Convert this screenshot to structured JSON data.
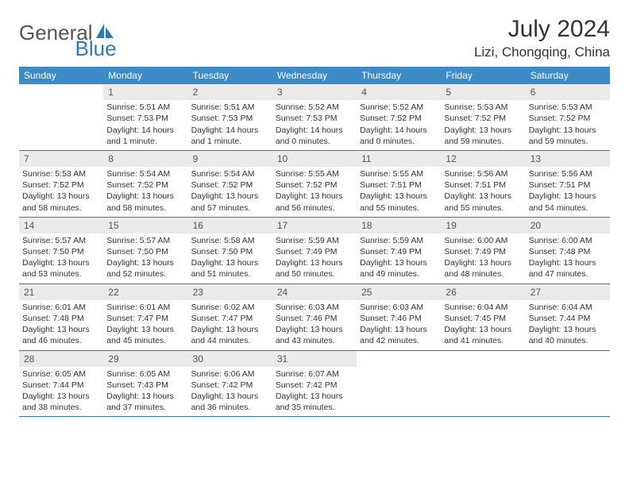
{
  "brand": {
    "text1": "General",
    "text2": "Blue",
    "icon_color": "#2a7bbf",
    "text1_color": "#555555",
    "text2_color": "#2a7bbf"
  },
  "header": {
    "month_title": "July 2024",
    "location": "Lizi, Chongqing, China"
  },
  "colors": {
    "header_bg": "#3b8bc8",
    "divider": "#2a7bbf",
    "daynum_bg": "#eaeaea",
    "text": "#333333",
    "background": "#ffffff"
  },
  "weekdays": [
    "Sunday",
    "Monday",
    "Tuesday",
    "Wednesday",
    "Thursday",
    "Friday",
    "Saturday"
  ],
  "weeks": [
    [
      {
        "n": "",
        "sr": "",
        "ss": "",
        "dl": ""
      },
      {
        "n": "1",
        "sr": "Sunrise: 5:51 AM",
        "ss": "Sunset: 7:53 PM",
        "dl": "Daylight: 14 hours and 1 minute."
      },
      {
        "n": "2",
        "sr": "Sunrise: 5:51 AM",
        "ss": "Sunset: 7:53 PM",
        "dl": "Daylight: 14 hours and 1 minute."
      },
      {
        "n": "3",
        "sr": "Sunrise: 5:52 AM",
        "ss": "Sunset: 7:53 PM",
        "dl": "Daylight: 14 hours and 0 minutes."
      },
      {
        "n": "4",
        "sr": "Sunrise: 5:52 AM",
        "ss": "Sunset: 7:52 PM",
        "dl": "Daylight: 14 hours and 0 minutes."
      },
      {
        "n": "5",
        "sr": "Sunrise: 5:53 AM",
        "ss": "Sunset: 7:52 PM",
        "dl": "Daylight: 13 hours and 59 minutes."
      },
      {
        "n": "6",
        "sr": "Sunrise: 5:53 AM",
        "ss": "Sunset: 7:52 PM",
        "dl": "Daylight: 13 hours and 59 minutes."
      }
    ],
    [
      {
        "n": "7",
        "sr": "Sunrise: 5:53 AM",
        "ss": "Sunset: 7:52 PM",
        "dl": "Daylight: 13 hours and 58 minutes."
      },
      {
        "n": "8",
        "sr": "Sunrise: 5:54 AM",
        "ss": "Sunset: 7:52 PM",
        "dl": "Daylight: 13 hours and 58 minutes."
      },
      {
        "n": "9",
        "sr": "Sunrise: 5:54 AM",
        "ss": "Sunset: 7:52 PM",
        "dl": "Daylight: 13 hours and 57 minutes."
      },
      {
        "n": "10",
        "sr": "Sunrise: 5:55 AM",
        "ss": "Sunset: 7:52 PM",
        "dl": "Daylight: 13 hours and 56 minutes."
      },
      {
        "n": "11",
        "sr": "Sunrise: 5:55 AM",
        "ss": "Sunset: 7:51 PM",
        "dl": "Daylight: 13 hours and 55 minutes."
      },
      {
        "n": "12",
        "sr": "Sunrise: 5:56 AM",
        "ss": "Sunset: 7:51 PM",
        "dl": "Daylight: 13 hours and 55 minutes."
      },
      {
        "n": "13",
        "sr": "Sunrise: 5:56 AM",
        "ss": "Sunset: 7:51 PM",
        "dl": "Daylight: 13 hours and 54 minutes."
      }
    ],
    [
      {
        "n": "14",
        "sr": "Sunrise: 5:57 AM",
        "ss": "Sunset: 7:50 PM",
        "dl": "Daylight: 13 hours and 53 minutes."
      },
      {
        "n": "15",
        "sr": "Sunrise: 5:57 AM",
        "ss": "Sunset: 7:50 PM",
        "dl": "Daylight: 13 hours and 52 minutes."
      },
      {
        "n": "16",
        "sr": "Sunrise: 5:58 AM",
        "ss": "Sunset: 7:50 PM",
        "dl": "Daylight: 13 hours and 51 minutes."
      },
      {
        "n": "17",
        "sr": "Sunrise: 5:59 AM",
        "ss": "Sunset: 7:49 PM",
        "dl": "Daylight: 13 hours and 50 minutes."
      },
      {
        "n": "18",
        "sr": "Sunrise: 5:59 AM",
        "ss": "Sunset: 7:49 PM",
        "dl": "Daylight: 13 hours and 49 minutes."
      },
      {
        "n": "19",
        "sr": "Sunrise: 6:00 AM",
        "ss": "Sunset: 7:49 PM",
        "dl": "Daylight: 13 hours and 48 minutes."
      },
      {
        "n": "20",
        "sr": "Sunrise: 6:00 AM",
        "ss": "Sunset: 7:48 PM",
        "dl": "Daylight: 13 hours and 47 minutes."
      }
    ],
    [
      {
        "n": "21",
        "sr": "Sunrise: 6:01 AM",
        "ss": "Sunset: 7:48 PM",
        "dl": "Daylight: 13 hours and 46 minutes."
      },
      {
        "n": "22",
        "sr": "Sunrise: 6:01 AM",
        "ss": "Sunset: 7:47 PM",
        "dl": "Daylight: 13 hours and 45 minutes."
      },
      {
        "n": "23",
        "sr": "Sunrise: 6:02 AM",
        "ss": "Sunset: 7:47 PM",
        "dl": "Daylight: 13 hours and 44 minutes."
      },
      {
        "n": "24",
        "sr": "Sunrise: 6:03 AM",
        "ss": "Sunset: 7:46 PM",
        "dl": "Daylight: 13 hours and 43 minutes."
      },
      {
        "n": "25",
        "sr": "Sunrise: 6:03 AM",
        "ss": "Sunset: 7:46 PM",
        "dl": "Daylight: 13 hours and 42 minutes."
      },
      {
        "n": "26",
        "sr": "Sunrise: 6:04 AM",
        "ss": "Sunset: 7:45 PM",
        "dl": "Daylight: 13 hours and 41 minutes."
      },
      {
        "n": "27",
        "sr": "Sunrise: 6:04 AM",
        "ss": "Sunset: 7:44 PM",
        "dl": "Daylight: 13 hours and 40 minutes."
      }
    ],
    [
      {
        "n": "28",
        "sr": "Sunrise: 6:05 AM",
        "ss": "Sunset: 7:44 PM",
        "dl": "Daylight: 13 hours and 38 minutes."
      },
      {
        "n": "29",
        "sr": "Sunrise: 6:05 AM",
        "ss": "Sunset: 7:43 PM",
        "dl": "Daylight: 13 hours and 37 minutes."
      },
      {
        "n": "30",
        "sr": "Sunrise: 6:06 AM",
        "ss": "Sunset: 7:42 PM",
        "dl": "Daylight: 13 hours and 36 minutes."
      },
      {
        "n": "31",
        "sr": "Sunrise: 6:07 AM",
        "ss": "Sunset: 7:42 PM",
        "dl": "Daylight: 13 hours and 35 minutes."
      },
      {
        "n": "",
        "sr": "",
        "ss": "",
        "dl": ""
      },
      {
        "n": "",
        "sr": "",
        "ss": "",
        "dl": ""
      },
      {
        "n": "",
        "sr": "",
        "ss": "",
        "dl": ""
      }
    ]
  ]
}
